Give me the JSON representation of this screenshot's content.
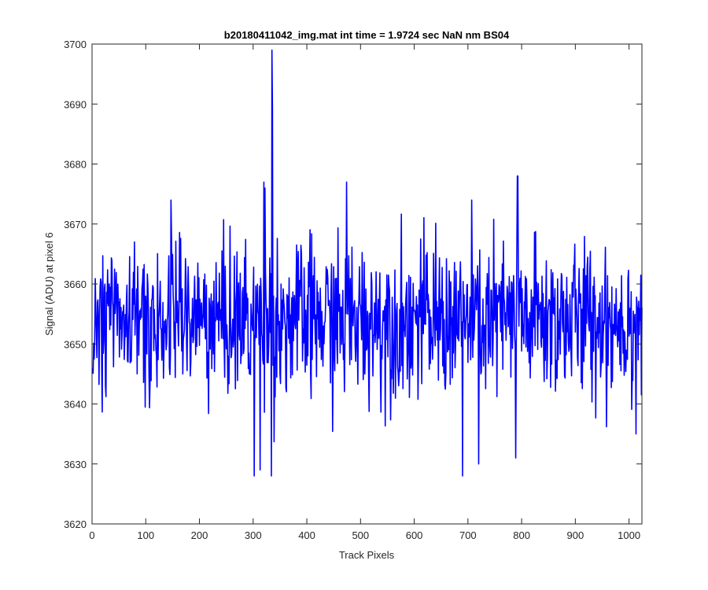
{
  "chart_data": {
    "type": "line",
    "title": "b20180411042_img.mat int time = 1.9724 sec  NaN nm BS04",
    "xlabel": "Track Pixels",
    "ylabel": "Signal (ADU) at pixel 6",
    "xlim": [
      0,
      1024
    ],
    "ylim": [
      3620,
      3700
    ],
    "xticks": [
      0,
      100,
      200,
      300,
      400,
      500,
      600,
      700,
      800,
      900,
      1000
    ],
    "yticks": [
      3620,
      3630,
      3640,
      3650,
      3660,
      3670,
      3680,
      3690,
      3700
    ],
    "grid": false,
    "box": true,
    "line_color": "#0000ff",
    "series_summary": {
      "n_points": 1024,
      "x_start": 1,
      "x_end": 1024,
      "baseline": 3654,
      "typical_min": 3635,
      "typical_max": 3670
    },
    "notable_points": [
      {
        "x": 335,
        "y": 3699
      },
      {
        "x": 336,
        "y": 3689
      },
      {
        "x": 320,
        "y": 3677
      },
      {
        "x": 322,
        "y": 3676
      },
      {
        "x": 474,
        "y": 3677
      },
      {
        "x": 792,
        "y": 3678
      },
      {
        "x": 793,
        "y": 3678
      },
      {
        "x": 302,
        "y": 3628
      },
      {
        "x": 313,
        "y": 3629
      },
      {
        "x": 334,
        "y": 3628
      },
      {
        "x": 690,
        "y": 3628
      },
      {
        "x": 720,
        "y": 3630
      },
      {
        "x": 789,
        "y": 3631
      },
      {
        "x": 1013,
        "y": 3635
      }
    ]
  }
}
